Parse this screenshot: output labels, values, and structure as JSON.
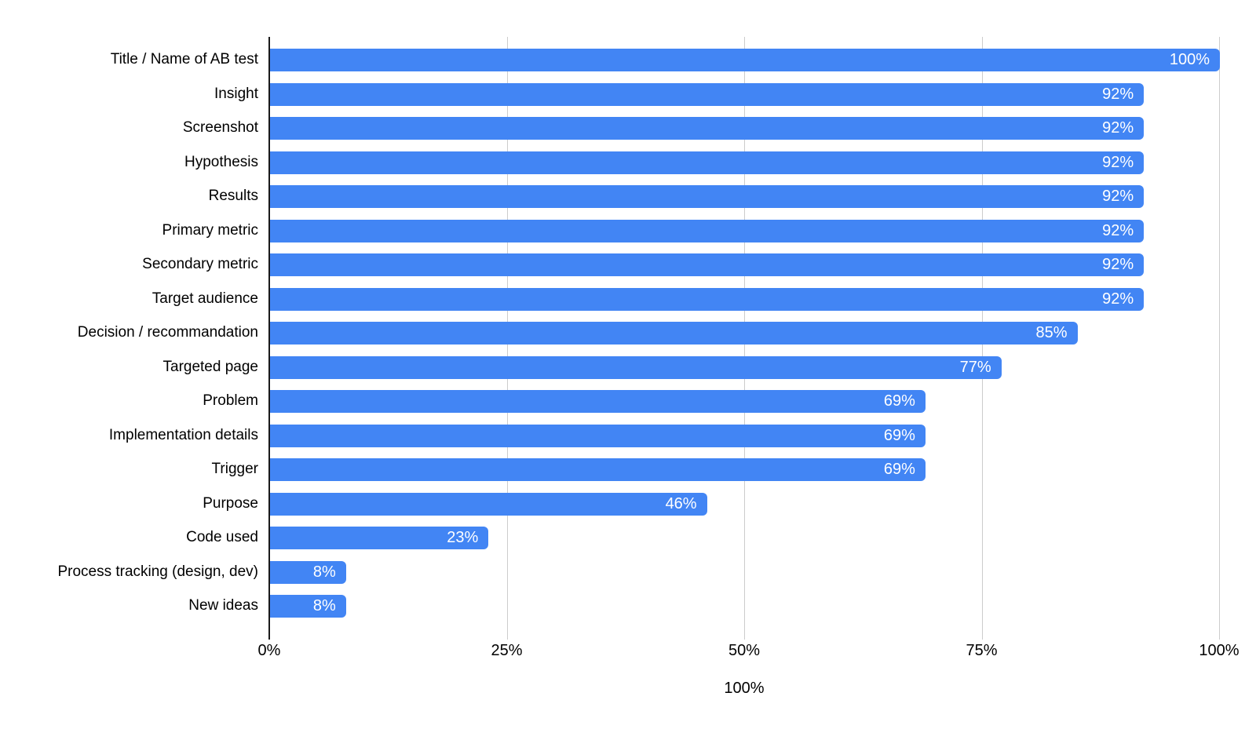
{
  "chart_data": {
    "type": "bar",
    "orientation": "horizontal",
    "title": "",
    "xlabel_axis_title": "100%",
    "xlim": [
      0,
      100
    ],
    "grid": true,
    "legend": "none",
    "bar_color": "#4285f4",
    "gridline_color": "#cccccc",
    "axis_line_color": "#1a1a1a",
    "category_label_color": "#000000",
    "value_label_color": "#ffffff",
    "background_color": "#ffffff",
    "x_ticks": [
      "0%",
      "25%",
      "50%",
      "75%",
      "100%"
    ],
    "x_tick_values": [
      0,
      25,
      50,
      75,
      100
    ],
    "items": [
      {
        "label": "Title / Name of AB test",
        "value": 100,
        "value_label": "100%"
      },
      {
        "label": "Insight",
        "value": 92,
        "value_label": "92%"
      },
      {
        "label": "Screenshot",
        "value": 92,
        "value_label": "92%"
      },
      {
        "label": "Hypothesis",
        "value": 92,
        "value_label": "92%"
      },
      {
        "label": "Results",
        "value": 92,
        "value_label": "92%"
      },
      {
        "label": "Primary metric",
        "value": 92,
        "value_label": "92%"
      },
      {
        "label": "Secondary metric",
        "value": 92,
        "value_label": "92%"
      },
      {
        "label": "Target audience",
        "value": 92,
        "value_label": "92%"
      },
      {
        "label": "Decision / recommandation",
        "value": 85,
        "value_label": "85%"
      },
      {
        "label": "Targeted page",
        "value": 77,
        "value_label": "77%"
      },
      {
        "label": "Problem",
        "value": 69,
        "value_label": "69%"
      },
      {
        "label": "Implementation details",
        "value": 69,
        "value_label": "69%"
      },
      {
        "label": "Trigger",
        "value": 69,
        "value_label": "69%"
      },
      {
        "label": "Purpose",
        "value": 46,
        "value_label": "46%"
      },
      {
        "label": "Code used",
        "value": 23,
        "value_label": "23%"
      },
      {
        "label": "Process tracking (design, dev)",
        "value": 8,
        "value_label": "8%"
      },
      {
        "label": "New ideas",
        "value": 8,
        "value_label": "8%"
      }
    ]
  }
}
